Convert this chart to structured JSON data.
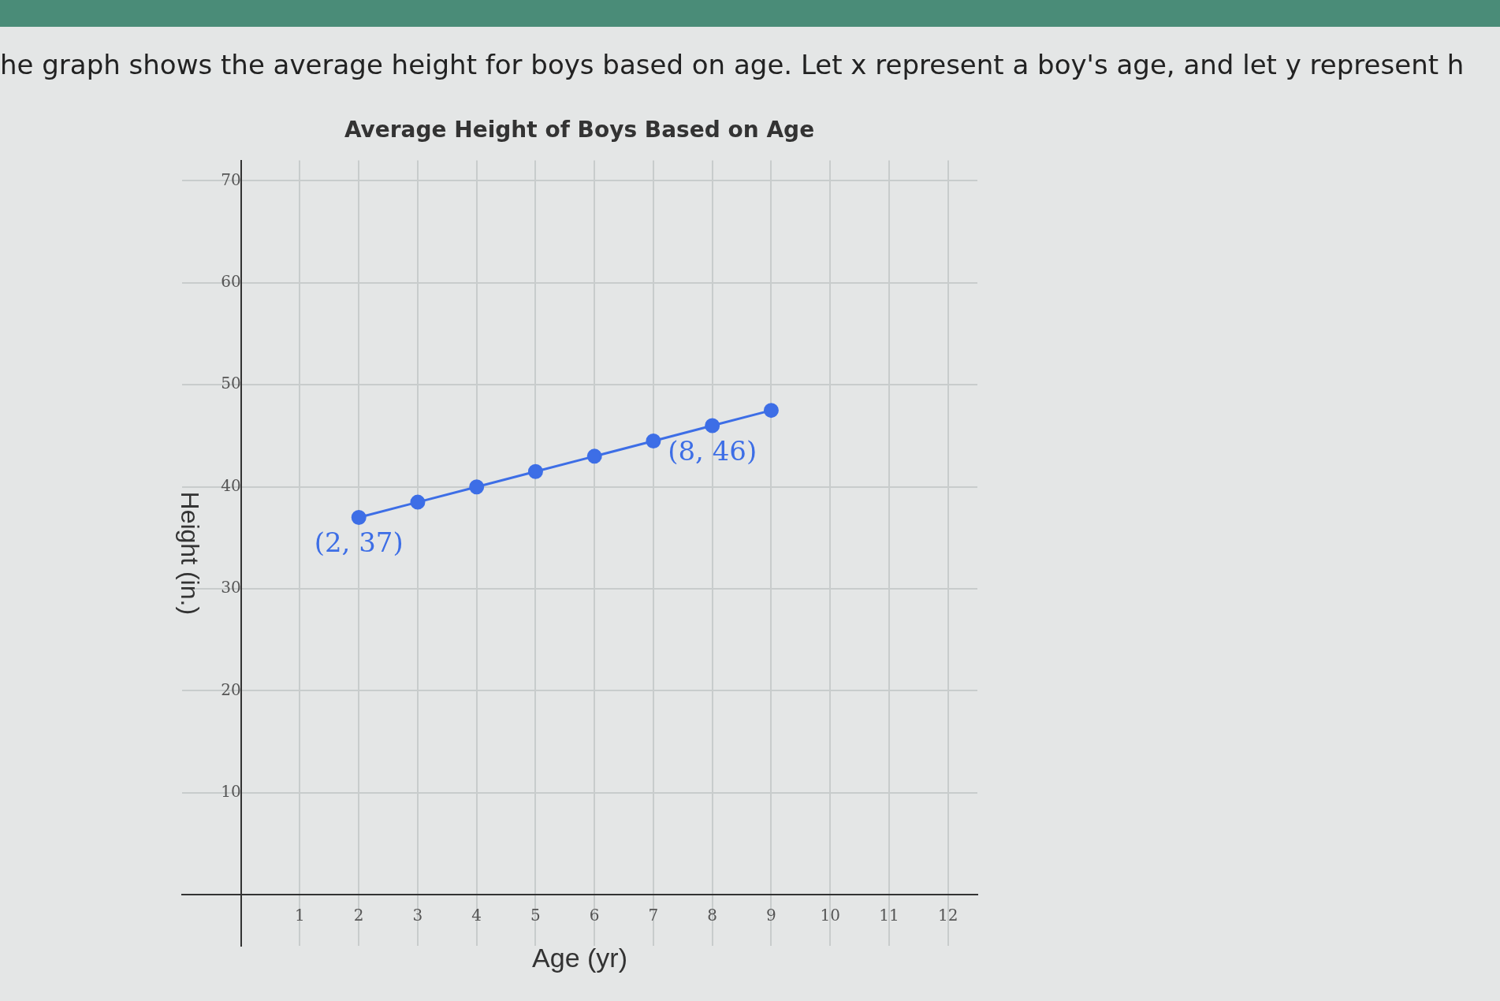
{
  "chart_data": {
    "type": "line",
    "title": "Average Height of Boys Based on Age",
    "xlabel": "Age (yr)",
    "ylabel": "Height (in.)",
    "x": [
      2,
      3,
      4,
      5,
      6,
      7,
      8,
      9
    ],
    "series": [
      {
        "color": "#3d6ee6",
        "values": [
          37,
          38.5,
          40,
          41.5,
          43,
          44.5,
          46,
          47.5
        ]
      }
    ],
    "xlim": [
      -1,
      12.5
    ],
    "xticks": [
      1,
      2,
      3,
      4,
      5,
      6,
      7,
      8,
      9,
      10,
      11,
      12
    ],
    "ylim": [
      -5,
      72
    ],
    "yticks": [
      10,
      20,
      30,
      40,
      50,
      60,
      70
    ],
    "grid": true,
    "marker": "circle",
    "line_style": "solid",
    "annotations": [
      "he graph shows the average height for boys based on age. Let x represent a boy's age, and let y represent h",
      {
        "text": "(2, 37)",
        "x": 2,
        "y": 37
      },
      {
        "text": "(8, 46)",
        "x": 8,
        "y": 46
      }
    ]
  }
}
